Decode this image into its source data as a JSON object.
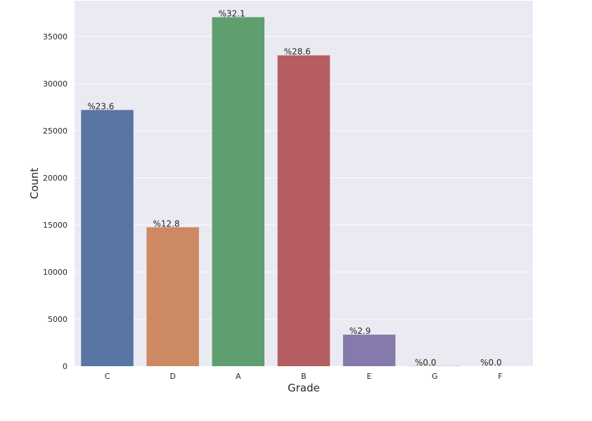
{
  "chart_data": {
    "type": "bar",
    "title": "",
    "xlabel": "Grade",
    "ylabel": "Count",
    "categories": [
      "C",
      "D",
      "A",
      "B",
      "E",
      "G",
      "F"
    ],
    "values": [
      27200,
      14750,
      37050,
      33000,
      3350,
      18,
      10
    ],
    "data_labels": [
      "%23.6",
      "%12.8",
      "%32.1",
      "%28.6",
      "%2.9",
      "%0.0",
      "%0.0"
    ],
    "bar_colors": [
      "#5875a4",
      "#cc8963",
      "#5f9e6e",
      "#b55d60",
      "#857aab",
      "#8d7866",
      "#d095bf"
    ],
    "ylim": [
      0,
      38800
    ],
    "y_ticks": [
      0,
      5000,
      10000,
      15000,
      20000,
      25000,
      30000,
      35000
    ],
    "y_tick_labels": [
      "0",
      "5000",
      "10000",
      "15000",
      "20000",
      "25000",
      "30000",
      "35000"
    ],
    "grid": true,
    "plot_background": "#eaeaf2",
    "grid_color": "#ffffff",
    "legend": "none"
  }
}
